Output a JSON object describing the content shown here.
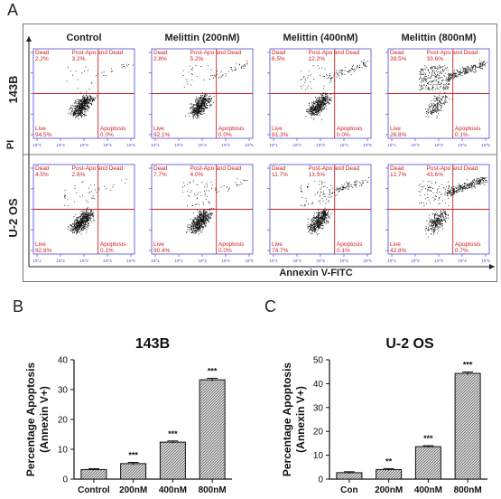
{
  "panels": {
    "a": "A",
    "b": "B",
    "c": "C"
  },
  "flow": {
    "columns": [
      "Control",
      "Melittin (200nM)",
      "Melittin (400nM)",
      "Melittin (800nM)"
    ],
    "rows": [
      "143B",
      "U-2 OS"
    ],
    "y_axis_label": "PI",
    "x_axis_label": "Annexin  V-FITC",
    "quadrant_labels": {
      "ul": "Dead",
      "ur": "Post-Apo and Dead",
      "ll": "Live",
      "lr": "Apoptosis"
    },
    "tick_labels": [
      "10^1",
      "10^2",
      "10^3",
      "10^4",
      "10^5"
    ],
    "values": [
      [
        [
          "2.2%",
          "3.2%",
          "94.5%",
          "0.0%"
        ],
        [
          "2.8%",
          "5.2%",
          "92.1%",
          "0.0%"
        ],
        [
          "6.5%",
          "12.2%",
          "81.3%",
          "0.0%"
        ],
        [
          "39.5%",
          "33.6%",
          "26.8%",
          "0.1%"
        ]
      ],
      [
        [
          "4.5%",
          "2.6%",
          "92.8%",
          "0.1%"
        ],
        [
          "7.7%",
          "4.0%",
          "90.4%",
          "0.0%"
        ],
        [
          "11.7%",
          "13.5%",
          "74.7%",
          "0.1%"
        ],
        [
          "12.7%",
          "43.6%",
          "42.8%",
          "0.7%"
        ]
      ]
    ]
  },
  "chart_data": [
    {
      "type": "bar",
      "title": "143B",
      "ylabel": "Percentage Apoptosis (Annexin V+)",
      "categories": [
        "Control",
        "200nM",
        "400nM",
        "800nM"
      ],
      "values": [
        3.2,
        5.2,
        12.4,
        33.3
      ],
      "errors": [
        0.3,
        0.4,
        0.4,
        0.5
      ],
      "significance": [
        "",
        "***",
        "***",
        "***"
      ],
      "ylim": [
        0,
        40
      ],
      "yticks": [
        0,
        10,
        20,
        30,
        40
      ]
    },
    {
      "type": "bar",
      "title": "U-2 OS",
      "ylabel": "Percentage Apoptosis (Annexin V+)",
      "categories": [
        "Con",
        "200nM",
        "400nM",
        "800nM"
      ],
      "values": [
        2.7,
        4.0,
        13.6,
        44.3
      ],
      "errors": [
        0.4,
        0.4,
        0.4,
        0.6
      ],
      "significance": [
        "",
        "**",
        "***",
        "***"
      ],
      "ylim": [
        0,
        50
      ],
      "yticks": [
        0,
        10,
        20,
        30,
        40,
        50
      ]
    }
  ]
}
